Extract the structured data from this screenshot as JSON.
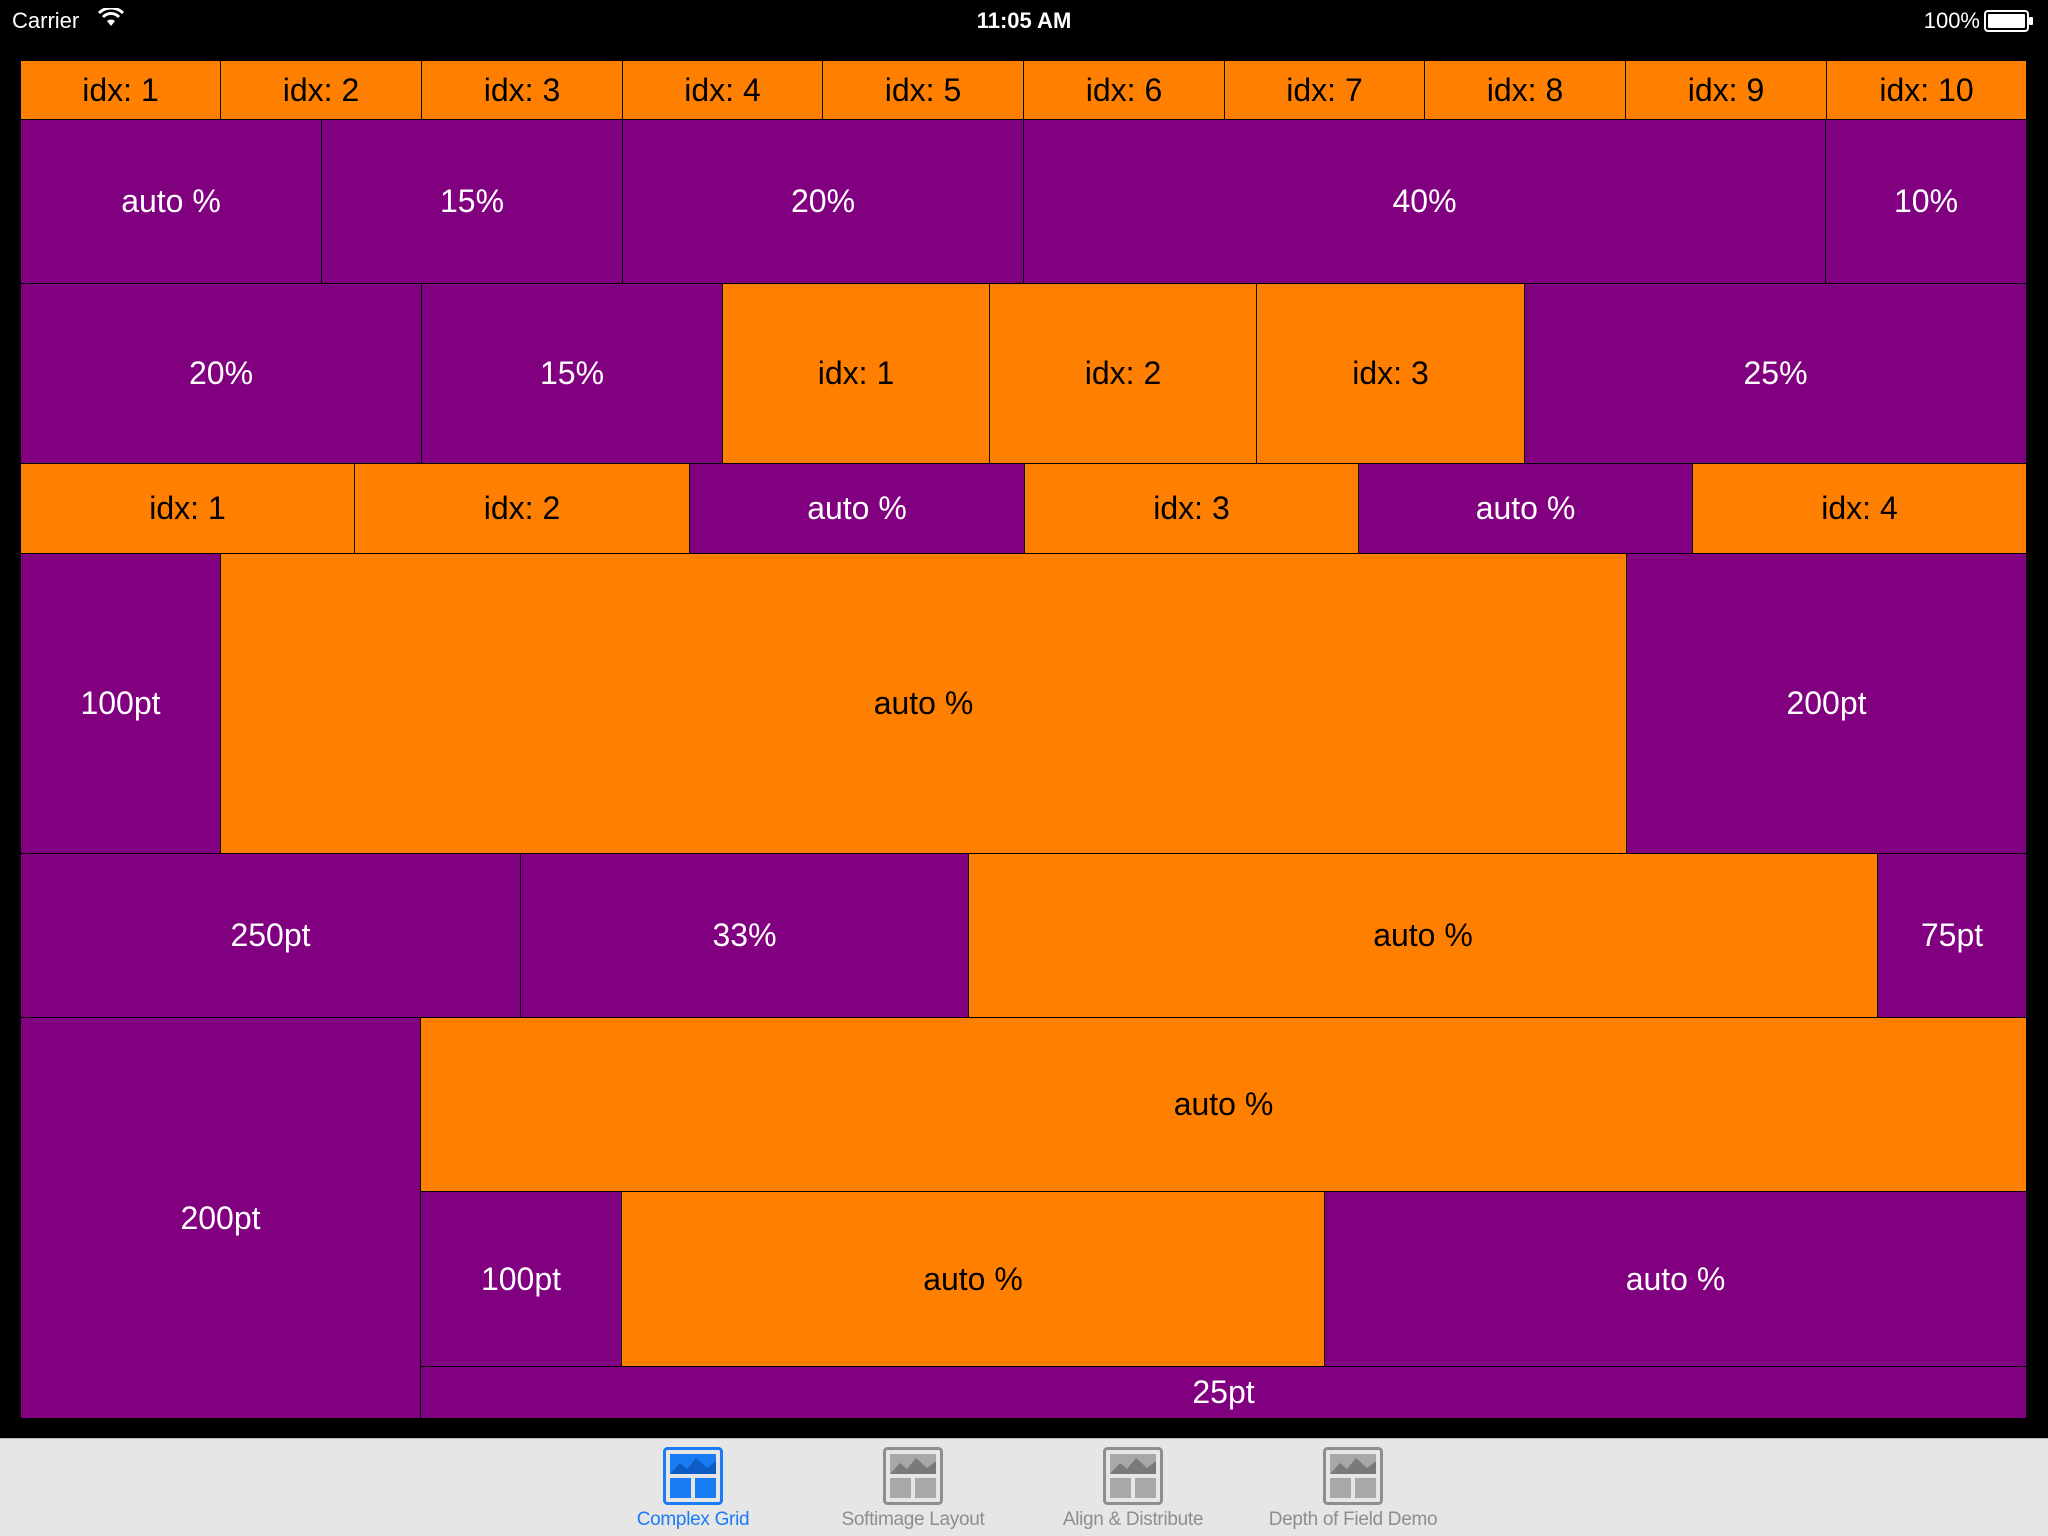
{
  "status_bar": {
    "carrier": "Carrier",
    "time": "11:05 AM",
    "battery": "100%"
  },
  "colors": {
    "orange": "#ff7f00",
    "purple": "#800080",
    "tab_active": "#1a7cf5",
    "tab_inactive": "#8e8e8e"
  },
  "grid": {
    "row1": [
      "idx: 1",
      "idx: 2",
      "idx: 3",
      "idx: 4",
      "idx: 5",
      "idx: 6",
      "idx: 7",
      "idx: 8",
      "idx: 9",
      "idx: 10"
    ],
    "row2": [
      "auto %",
      "15%",
      "20%",
      "40%",
      "10%"
    ],
    "row3": [
      "20%",
      "15%",
      "idx: 1",
      "idx: 2",
      "idx: 3",
      "25%"
    ],
    "row4": [
      "idx: 1",
      "idx: 2",
      "auto %",
      "idx: 3",
      "auto %",
      "idx: 4"
    ],
    "row5": [
      "100pt",
      "auto %",
      "200pt"
    ],
    "row6": [
      "250pt",
      "33%",
      "auto %",
      "75pt"
    ],
    "row7": {
      "left": "200pt",
      "top": "auto %",
      "mid": [
        "100pt",
        "auto %",
        "auto %"
      ],
      "bottom": "25pt"
    }
  },
  "tab_bar": {
    "tabs": [
      {
        "label": "Complex Grid",
        "icon": "complex-grid-icon",
        "active": true
      },
      {
        "label": "Softimage Layout",
        "icon": "softimage-layout-icon",
        "active": false
      },
      {
        "label": "Align & Distribute",
        "icon": "align-distribute-icon",
        "active": false
      },
      {
        "label": "Depth of Field Demo",
        "icon": "depth-of-field-icon",
        "active": false
      }
    ]
  }
}
